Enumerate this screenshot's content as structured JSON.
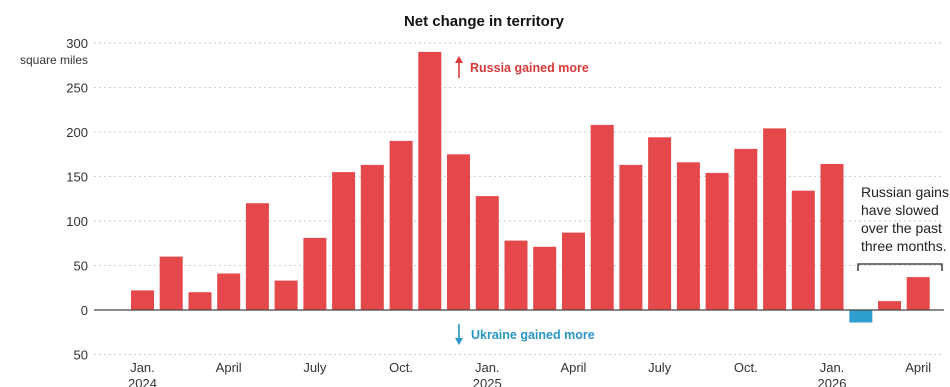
{
  "chart_data": {
    "type": "bar",
    "title": "Net change in territory",
    "unit_label": "square miles",
    "ylim": [
      -50,
      300
    ],
    "yticks": [
      {
        "value": 300,
        "label": "300"
      },
      {
        "value": 250,
        "label": "250"
      },
      {
        "value": 200,
        "label": "200"
      },
      {
        "value": 150,
        "label": "150"
      },
      {
        "value": 100,
        "label": "100"
      },
      {
        "value": 50,
        "label": "50"
      },
      {
        "value": 0,
        "label": "0"
      },
      {
        "value": -50,
        "label": "50"
      }
    ],
    "categories": [
      "2024-01",
      "2024-02",
      "2024-03",
      "2024-04",
      "2024-05",
      "2024-06",
      "2024-07",
      "2024-08",
      "2024-09",
      "2024-10",
      "2024-11",
      "2024-12",
      "2025-01",
      "2025-02",
      "2025-03",
      "2025-04",
      "2025-05",
      "2025-06",
      "2025-07",
      "2025-08",
      "2025-09",
      "2025-10",
      "2025-11",
      "2025-12",
      "2026-01",
      "2026-02",
      "2026-03",
      "2026-04"
    ],
    "values": [
      22,
      60,
      20,
      41,
      120,
      33,
      81,
      155,
      163,
      190,
      290,
      175,
      128,
      78,
      71,
      87,
      208,
      163,
      194,
      166,
      154,
      181,
      204,
      134,
      164,
      -14,
      10,
      37
    ],
    "xtick_labels": [
      {
        "index": 0,
        "line1": "Jan.",
        "line2": "2024"
      },
      {
        "index": 3,
        "line1": "April",
        "line2": ""
      },
      {
        "index": 6,
        "line1": "July",
        "line2": ""
      },
      {
        "index": 9,
        "line1": "Oct.",
        "line2": ""
      },
      {
        "index": 12,
        "line1": "Jan.",
        "line2": "2025"
      },
      {
        "index": 15,
        "line1": "April",
        "line2": ""
      },
      {
        "index": 18,
        "line1": "July",
        "line2": ""
      },
      {
        "index": 21,
        "line1": "Oct.",
        "line2": ""
      },
      {
        "index": 24,
        "line1": "Jan.",
        "line2": "2026"
      },
      {
        "index": 27,
        "line1": "April",
        "line2": ""
      }
    ],
    "annotations": {
      "russia": "Russia gained more",
      "ukraine": "Ukraine gained more",
      "note_lines": [
        "Russian gains",
        "have slowed",
        "over the past",
        "three months."
      ]
    },
    "grid": true,
    "colors": {
      "positive": "#e5484a",
      "negative": "#2e9fcf",
      "russia_text": "#d93a3a",
      "ukraine_text": "#2a95c4",
      "grid": "#cfcfcf",
      "axis": "#444444"
    }
  }
}
